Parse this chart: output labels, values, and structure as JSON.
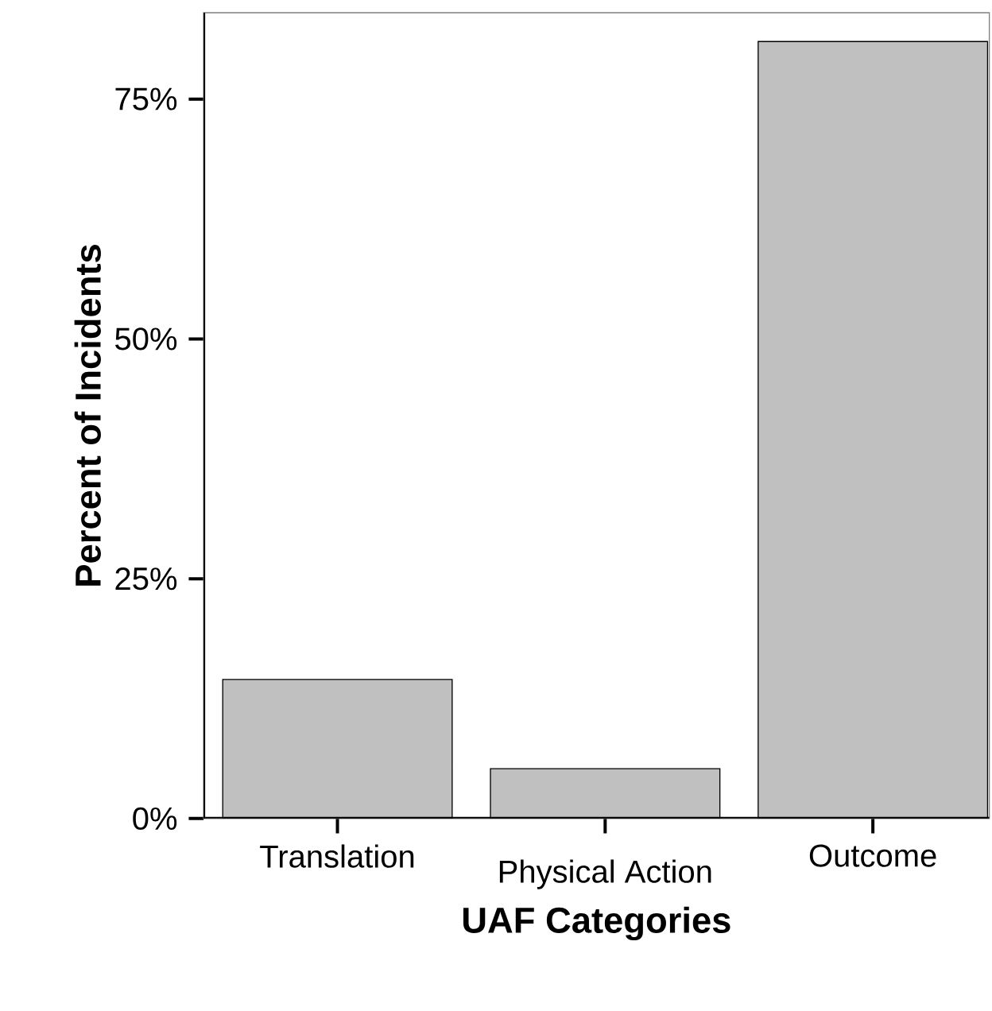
{
  "chart_data": {
    "type": "bar",
    "xlabel": "UAF Categories",
    "ylabel": "Percent of Incidents",
    "categories": [
      "Translation",
      "Physical Action",
      "Outcome"
    ],
    "values": [
      14.5,
      5.2,
      81.0
    ],
    "color": "#c0c0c0",
    "ylim": [
      0,
      84
    ],
    "yticks": [
      {
        "value": 0,
        "label": "0%"
      },
      {
        "value": 25,
        "label": "25%"
      },
      {
        "value": 50,
        "label": "50%"
      },
      {
        "value": 75,
        "label": "75%"
      }
    ],
    "grid": false
  }
}
